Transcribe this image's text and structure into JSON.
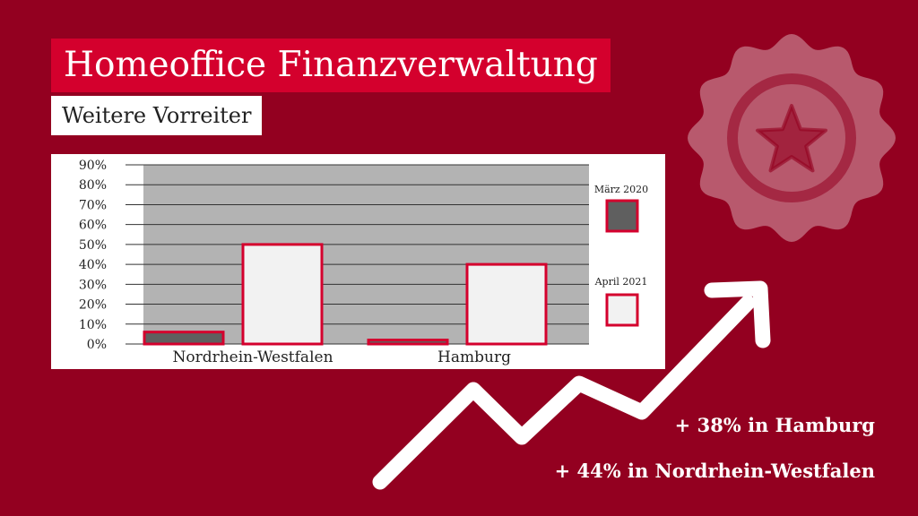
{
  "header": {
    "title": "Homeoffice Finanzverwaltung",
    "subtitle": "Weitere Vorreiter"
  },
  "colors": {
    "background": "#930020",
    "title_bg": "#d4002d",
    "plot_bg": "#b3b3b3",
    "bar_dark": "#5f5f5f",
    "bar_light": "#f2f2f2",
    "bar_outline": "#d4002d"
  },
  "chart_data": {
    "type": "bar",
    "categories": [
      "Nordrhein-Westfalen",
      "Hamburg"
    ],
    "series": [
      {
        "name": "März 2020",
        "values": [
          6,
          2
        ]
      },
      {
        "name": "April 2021",
        "values": [
          50,
          40
        ]
      }
    ],
    "ylim": [
      0,
      90
    ],
    "yticks": [
      "0%",
      "10%",
      "20%",
      "30%",
      "40%",
      "50%",
      "60%",
      "70%",
      "80%",
      "90%"
    ],
    "grid": true,
    "legend": "right"
  },
  "stats": [
    "+ 38% in Hamburg",
    "+ 44% in Nordrhein-Westfalen"
  ],
  "decor": {
    "badge_icon": "star-badge-icon",
    "arrow_icon": "trend-arrow-icon"
  }
}
